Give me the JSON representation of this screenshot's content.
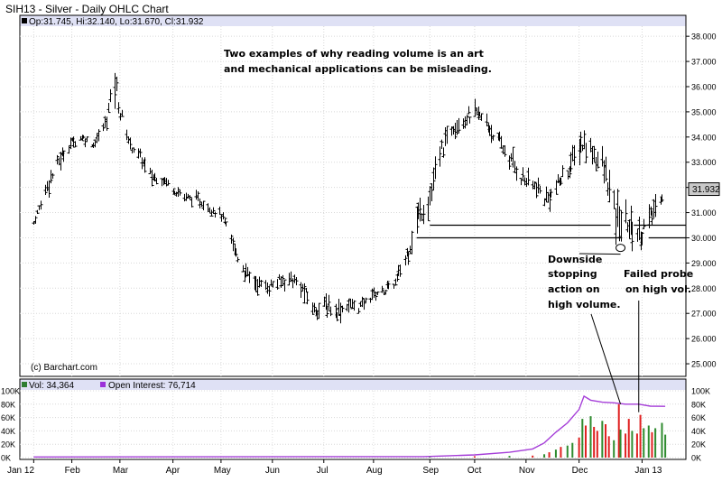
{
  "chart_data": [
    {
      "type": "ohlc",
      "title": "SIH13 - Silver - Daily OHLC Chart",
      "info_bar": {
        "marker": "",
        "text": "Op:31.745, Hi:32.140, Lo:31.670, Cl:31.932"
      },
      "last_price_label": "31.932",
      "watermark": "(c) Barchart.com",
      "x_tick_labels": [
        "Jan 12",
        "Feb",
        "Mar",
        "Apr",
        "May",
        "Jun",
        "Jul",
        "Aug",
        "Sep",
        "Oct",
        "Nov",
        "Dec",
        "Jan 13"
      ],
      "y_tick_labels": [
        "25.000",
        "26.000",
        "27.000",
        "28.000",
        "29.000",
        "30.000",
        "31.000",
        "32.000",
        "33.000",
        "34.000",
        "35.000",
        "36.000",
        "37.000",
        "38.000"
      ],
      "ylim": [
        24.5,
        38.4
      ],
      "grid": true,
      "annotation_text": [
        "Two examples of why reading volume is an art",
        "and mechanical applications can be misleading."
      ],
      "callouts": [
        {
          "lines": [
            "Downside",
            "stopping",
            "action on",
            "high volume."
          ]
        },
        {
          "lines": [
            "Failed probe",
            "on high vol."
          ]
        }
      ],
      "support_levels": [
        30.5,
        30.0
      ],
      "trend": [
        {
          "date": "2012-01-09",
          "high": 30.8,
          "low": 30.4
        },
        {
          "date": "2012-01-17",
          "high": 32.6,
          "low": 31.6
        },
        {
          "date": "2012-01-24",
          "high": 33.5,
          "low": 32.6
        },
        {
          "date": "2012-01-31",
          "high": 34.1,
          "low": 33.4
        },
        {
          "date": "2012-02-07",
          "high": 34.3,
          "low": 33.7
        },
        {
          "date": "2012-02-14",
          "high": 33.9,
          "low": 33.5
        },
        {
          "date": "2012-02-21",
          "high": 34.9,
          "low": 34.1
        },
        {
          "date": "2012-02-27",
          "high": 37.4,
          "low": 35.2
        },
        {
          "date": "2012-03-01",
          "high": 35.5,
          "low": 34.4
        },
        {
          "date": "2012-03-07",
          "high": 34.0,
          "low": 33.4
        },
        {
          "date": "2012-03-13",
          "high": 33.6,
          "low": 32.8
        },
        {
          "date": "2012-03-20",
          "high": 32.8,
          "low": 32.0
        },
        {
          "date": "2012-03-27",
          "high": 32.7,
          "low": 32.0
        },
        {
          "date": "2012-04-03",
          "high": 32.2,
          "low": 31.6
        },
        {
          "date": "2012-04-10",
          "high": 31.9,
          "low": 31.3
        },
        {
          "date": "2012-04-17",
          "high": 31.8,
          "low": 31.2
        },
        {
          "date": "2012-04-24",
          "high": 31.5,
          "low": 30.9
        },
        {
          "date": "2012-05-01",
          "high": 31.2,
          "low": 30.6
        },
        {
          "date": "2012-05-08",
          "high": 30.2,
          "low": 29.2
        },
        {
          "date": "2012-05-15",
          "high": 29.1,
          "low": 28.2
        },
        {
          "date": "2012-05-22",
          "high": 28.6,
          "low": 27.8
        },
        {
          "date": "2012-05-29",
          "high": 28.5,
          "low": 27.6
        },
        {
          "date": "2012-06-05",
          "high": 28.6,
          "low": 27.9
        },
        {
          "date": "2012-06-12",
          "high": 28.8,
          "low": 28.0
        },
        {
          "date": "2012-06-19",
          "high": 28.4,
          "low": 27.5
        },
        {
          "date": "2012-06-26",
          "high": 27.6,
          "low": 26.7
        },
        {
          "date": "2012-07-03",
          "high": 27.8,
          "low": 26.8
        },
        {
          "date": "2012-07-10",
          "high": 27.6,
          "low": 26.6
        },
        {
          "date": "2012-07-17",
          "high": 27.7,
          "low": 27.0
        },
        {
          "date": "2012-07-24",
          "high": 27.6,
          "low": 26.9
        },
        {
          "date": "2012-07-31",
          "high": 28.1,
          "low": 27.4
        },
        {
          "date": "2012-08-07",
          "high": 28.2,
          "low": 27.6
        },
        {
          "date": "2012-08-14",
          "high": 28.5,
          "low": 27.9
        },
        {
          "date": "2012-08-21",
          "high": 30.1,
          "low": 28.6
        },
        {
          "date": "2012-08-28",
          "high": 31.6,
          "low": 30.2
        },
        {
          "date": "2012-09-04",
          "high": 32.6,
          "low": 30.6
        },
        {
          "date": "2012-09-11",
          "high": 34.1,
          "low": 32.9
        },
        {
          "date": "2012-09-18",
          "high": 35.0,
          "low": 34.0
        },
        {
          "date": "2012-09-25",
          "high": 35.3,
          "low": 34.2
        },
        {
          "date": "2012-10-02",
          "high": 35.4,
          "low": 34.5
        },
        {
          "date": "2012-10-09",
          "high": 35.0,
          "low": 33.9
        },
        {
          "date": "2012-10-16",
          "high": 34.2,
          "low": 33.3
        },
        {
          "date": "2012-10-23",
          "high": 33.6,
          "low": 32.5
        },
        {
          "date": "2012-10-30",
          "high": 32.9,
          "low": 31.8
        },
        {
          "date": "2012-11-06",
          "high": 32.5,
          "low": 31.6
        },
        {
          "date": "2012-11-13",
          "high": 32.1,
          "low": 30.9
        },
        {
          "date": "2012-11-20",
          "high": 32.6,
          "low": 31.6
        },
        {
          "date": "2012-11-27",
          "high": 33.4,
          "low": 32.2
        },
        {
          "date": "2012-12-04",
          "high": 34.4,
          "low": 33.1
        },
        {
          "date": "2012-12-11",
          "high": 34.1,
          "low": 32.8
        },
        {
          "date": "2012-12-18",
          "high": 33.5,
          "low": 31.9
        },
        {
          "date": "2012-12-25",
          "high": 31.9,
          "low": 29.6
        },
        {
          "date": "2013-01-01",
          "high": 31.3,
          "low": 29.9
        },
        {
          "date": "2013-01-08",
          "high": 31.0,
          "low": 29.2
        },
        {
          "date": "2013-01-15",
          "high": 31.4,
          "low": 30.2
        },
        {
          "date": "2013-01-22",
          "high": 32.1,
          "low": 31.3
        }
      ]
    },
    {
      "type": "bar",
      "info_bar": [
        {
          "marker": "#2e7d32",
          "text": "Vol: 34,364"
        },
        {
          "marker": "#9b30d9",
          "text": "Open Interest: 76,714"
        }
      ],
      "y_tick_labels": [
        "0K",
        "20K",
        "40K",
        "60K",
        "80K",
        "100K"
      ],
      "ylim": [
        0,
        100000
      ],
      "colors": {
        "up_volume": "#2e8b2e",
        "down_volume": "#e02020",
        "open_interest": "#a53ed8"
      },
      "volume": [
        {
          "date": "2012-09-04",
          "value": 1500,
          "dir": "up"
        },
        {
          "date": "2012-10-01",
          "value": 2000,
          "dir": "down"
        },
        {
          "date": "2012-10-22",
          "value": 2500,
          "dir": "up"
        },
        {
          "date": "2012-11-05",
          "value": 3000,
          "dir": "down"
        },
        {
          "date": "2012-11-12",
          "value": 5000,
          "dir": "up"
        },
        {
          "date": "2012-11-15",
          "value": 8000,
          "dir": "down"
        },
        {
          "date": "2012-11-19",
          "value": 12000,
          "dir": "up"
        },
        {
          "date": "2012-11-22",
          "value": 16000,
          "dir": "down"
        },
        {
          "date": "2012-11-26",
          "value": 18000,
          "dir": "up"
        },
        {
          "date": "2012-11-29",
          "value": 22000,
          "dir": "up"
        },
        {
          "date": "2012-12-03",
          "value": 30000,
          "dir": "down"
        },
        {
          "date": "2012-12-05",
          "value": 58000,
          "dir": "up"
        },
        {
          "date": "2012-12-07",
          "value": 48000,
          "dir": "down"
        },
        {
          "date": "2012-12-10",
          "value": 62000,
          "dir": "up"
        },
        {
          "date": "2012-12-12",
          "value": 46000,
          "dir": "down"
        },
        {
          "date": "2012-12-14",
          "value": 40000,
          "dir": "down"
        },
        {
          "date": "2012-12-17",
          "value": 55000,
          "dir": "up"
        },
        {
          "date": "2012-12-19",
          "value": 50000,
          "dir": "down"
        },
        {
          "date": "2012-12-21",
          "value": 32000,
          "dir": "down"
        },
        {
          "date": "2012-12-24",
          "value": 26000,
          "dir": "up"
        },
        {
          "date": "2012-12-27",
          "value": 80000,
          "dir": "down"
        },
        {
          "date": "2012-12-28",
          "value": 42000,
          "dir": "up"
        },
        {
          "date": "2012-12-31",
          "value": 36000,
          "dir": "down"
        },
        {
          "date": "2013-01-02",
          "value": 58000,
          "dir": "down"
        },
        {
          "date": "2013-01-04",
          "value": 40000,
          "dir": "up"
        },
        {
          "date": "2013-01-07",
          "value": 36000,
          "dir": "down"
        },
        {
          "date": "2013-01-09",
          "value": 64000,
          "dir": "down"
        },
        {
          "date": "2013-01-11",
          "value": 44000,
          "dir": "up"
        },
        {
          "date": "2013-01-14",
          "value": 48000,
          "dir": "up"
        },
        {
          "date": "2013-01-16",
          "value": 38000,
          "dir": "down"
        },
        {
          "date": "2013-01-18",
          "value": 44000,
          "dir": "up"
        },
        {
          "date": "2013-01-22",
          "value": 52000,
          "dir": "up"
        },
        {
          "date": "2013-01-24",
          "value": 34364,
          "dir": "up"
        }
      ],
      "open_interest": [
        {
          "date": "2012-01-09",
          "value": 1000
        },
        {
          "date": "2012-08-31",
          "value": 1500
        },
        {
          "date": "2012-09-14",
          "value": 2500
        },
        {
          "date": "2012-10-01",
          "value": 4000
        },
        {
          "date": "2012-10-22",
          "value": 8000
        },
        {
          "date": "2012-11-05",
          "value": 13000
        },
        {
          "date": "2012-11-12",
          "value": 22000
        },
        {
          "date": "2012-11-19",
          "value": 38000
        },
        {
          "date": "2012-11-26",
          "value": 52000
        },
        {
          "date": "2012-12-03",
          "value": 72000
        },
        {
          "date": "2012-12-06",
          "value": 92000
        },
        {
          "date": "2012-12-10",
          "value": 86000
        },
        {
          "date": "2012-12-17",
          "value": 83000
        },
        {
          "date": "2012-12-24",
          "value": 82000
        },
        {
          "date": "2012-12-31",
          "value": 80000
        },
        {
          "date": "2013-01-08",
          "value": 80000
        },
        {
          "date": "2013-01-15",
          "value": 77000
        },
        {
          "date": "2013-01-24",
          "value": 76714
        }
      ]
    }
  ]
}
